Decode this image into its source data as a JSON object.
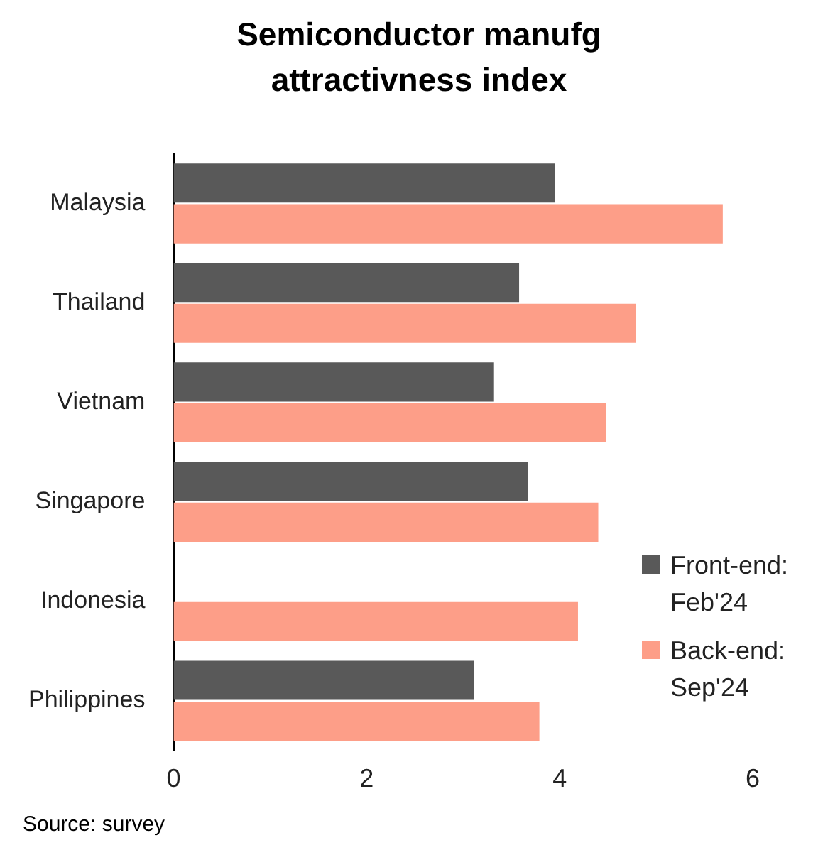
{
  "chart_data": {
    "type": "bar",
    "orientation": "horizontal",
    "title": "Semiconductor manufg attractivness index",
    "categories": [
      "Malaysia",
      "Thailand",
      "Vietnam",
      "Singapore",
      "Indonesia",
      "Philippines"
    ],
    "series": [
      {
        "name": "Front-end: Feb'24",
        "color": "#595959",
        "values": [
          3.95,
          3.58,
          3.32,
          3.67,
          null,
          3.11
        ]
      },
      {
        "name": "Back-end: Sep'24",
        "color": "#fd9e88",
        "values": [
          5.69,
          4.79,
          4.48,
          4.4,
          4.19,
          3.79
        ]
      }
    ],
    "xlim": [
      0,
      6
    ],
    "xticks": [
      0,
      2,
      4,
      6
    ],
    "grid": false,
    "legend": "right",
    "annotations": [
      "Source: survey"
    ]
  }
}
